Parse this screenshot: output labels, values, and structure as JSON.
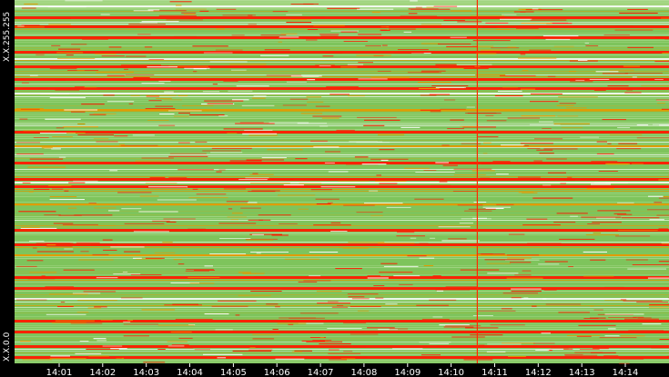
{
  "chart_data": {
    "type": "heatmap",
    "title": "",
    "xlabel": "",
    "ylabel": "",
    "x_tick_labels": [
      "14:01",
      "14:02",
      "14:03",
      "14:04",
      "14:05",
      "14:06",
      "14:07",
      "14:08",
      "14:09",
      "14:10",
      "14:11",
      "14:12",
      "14:13",
      "14:14"
    ],
    "y_tick_labels": {
      "top": "X.X.255.255",
      "bottom": "X.X.0.0"
    },
    "x_range": [
      "14:00",
      "14:15"
    ],
    "marker_time": "14:10:36",
    "grid": false,
    "legend": "none",
    "colors": {
      "background": "#000000",
      "low": "#ffffff",
      "light_green": "#a9d98a",
      "green": "#7ec45c",
      "olive": "#a6b83a",
      "orange": "#e59a00",
      "red": "#ff1a00",
      "marker": "#ff2a00"
    },
    "rows": [
      {
        "ip_fraction": 0.985,
        "intensity": "low"
      },
      {
        "ip_fraction": 0.955,
        "intensity": "high"
      },
      {
        "ip_fraction": 0.93,
        "intensity": "high"
      },
      {
        "ip_fraction": 0.9,
        "intensity": "high"
      },
      {
        "ip_fraction": 0.86,
        "intensity": "high"
      },
      {
        "ip_fraction": 0.84,
        "intensity": "low"
      },
      {
        "ip_fraction": 0.82,
        "intensity": "high"
      },
      {
        "ip_fraction": 0.785,
        "intensity": "high"
      },
      {
        "ip_fraction": 0.76,
        "intensity": "high"
      },
      {
        "ip_fraction": 0.745,
        "intensity": "low"
      },
      {
        "ip_fraction": 0.7,
        "intensity": "medium"
      },
      {
        "ip_fraction": 0.64,
        "intensity": "high"
      },
      {
        "ip_fraction": 0.6,
        "intensity": "medium"
      },
      {
        "ip_fraction": 0.555,
        "intensity": "high"
      },
      {
        "ip_fraction": 0.51,
        "intensity": "high"
      },
      {
        "ip_fraction": 0.5,
        "intensity": "low"
      },
      {
        "ip_fraction": 0.49,
        "intensity": "high"
      },
      {
        "ip_fraction": 0.44,
        "intensity": "medium"
      },
      {
        "ip_fraction": 0.37,
        "intensity": "high"
      },
      {
        "ip_fraction": 0.33,
        "intensity": "high"
      },
      {
        "ip_fraction": 0.3,
        "intensity": "medium"
      },
      {
        "ip_fraction": 0.24,
        "intensity": "high"
      },
      {
        "ip_fraction": 0.21,
        "intensity": "high"
      },
      {
        "ip_fraction": 0.18,
        "intensity": "low"
      },
      {
        "ip_fraction": 0.12,
        "intensity": "high"
      },
      {
        "ip_fraction": 0.09,
        "intensity": "high"
      },
      {
        "ip_fraction": 0.05,
        "intensity": "high"
      },
      {
        "ip_fraction": 0.02,
        "intensity": "high"
      }
    ]
  }
}
